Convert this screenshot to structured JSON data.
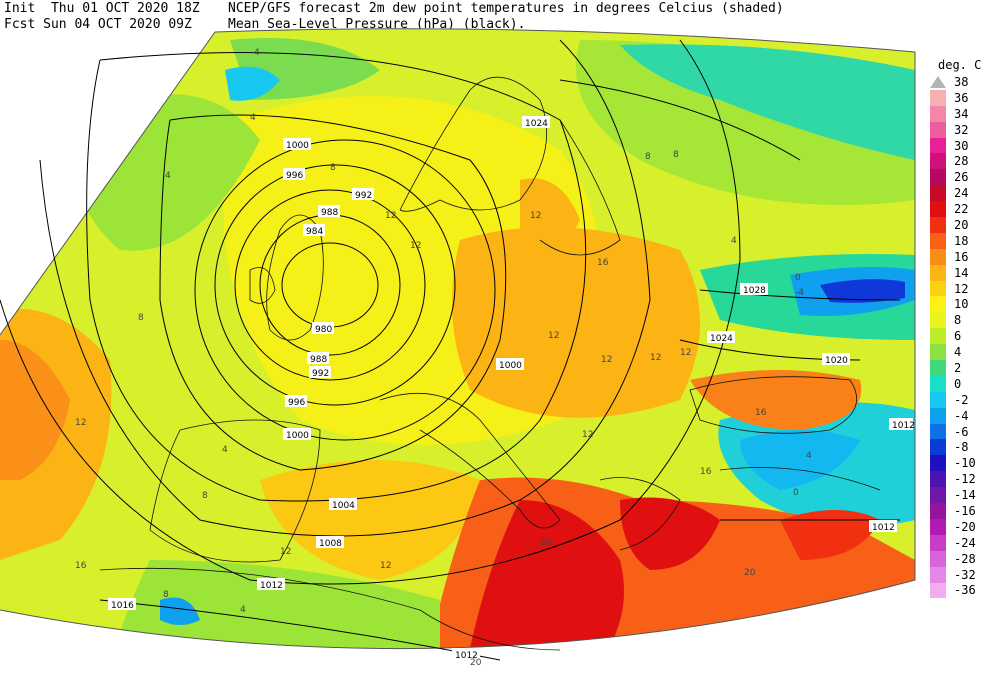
{
  "header": {
    "line1_left": "Init  Thu 01 OCT 2020 18Z",
    "line1_right": "NCEP/GFS forecast 2m dew point temperatures in degrees Celcius (shaded)",
    "line2_left": "Fcst Sun 04 OCT 2020 09Z",
    "line2_right": "Mean Sea-Level Pressure (hPa) (black)."
  },
  "legend": {
    "unit": "deg. C",
    "levels": [
      {
        "label": "38",
        "color": "#b4b4b4"
      },
      {
        "label": "36",
        "color": "#f7b0b0"
      },
      {
        "label": "34",
        "color": "#f486a8"
      },
      {
        "label": "32",
        "color": "#ee5ca0"
      },
      {
        "label": "30",
        "color": "#e8209a"
      },
      {
        "label": "28",
        "color": "#d0107c"
      },
      {
        "label": "26",
        "color": "#b40a60"
      },
      {
        "label": "24",
        "color": "#c80a28"
      },
      {
        "label": "22",
        "color": "#e01010"
      },
      {
        "label": "20",
        "color": "#f03010"
      },
      {
        "label": "18",
        "color": "#f86018"
      },
      {
        "label": "16",
        "color": "#fa8c18"
      },
      {
        "label": "14",
        "color": "#fcb414"
      },
      {
        "label": "12",
        "color": "#fcd010"
      },
      {
        "label": "10",
        "color": "#fcf014"
      },
      {
        "label": "8",
        "color": "#e8f41c"
      },
      {
        "label": "6",
        "color": "#bcec28"
      },
      {
        "label": "4",
        "color": "#8ce040"
      },
      {
        "label": "2",
        "color": "#40d878"
      },
      {
        "label": "0",
        "color": "#18e0c8"
      },
      {
        "label": "-2",
        "color": "#14c8f0"
      },
      {
        "label": "-4",
        "color": "#10a0f0"
      },
      {
        "label": "-6",
        "color": "#1070e8"
      },
      {
        "label": "-8",
        "color": "#0c3cd8"
      },
      {
        "label": "-10",
        "color": "#2010c0"
      },
      {
        "label": "-12",
        "color": "#4c14b0"
      },
      {
        "label": "-14",
        "color": "#7018a8"
      },
      {
        "label": "-16",
        "color": "#94149c"
      },
      {
        "label": "-20",
        "color": "#b01cb0"
      },
      {
        "label": "-24",
        "color": "#c83cc8"
      },
      {
        "label": "-28",
        "color": "#d864dc"
      },
      {
        "label": "-32",
        "color": "#e488e8"
      },
      {
        "label": "-36",
        "color": "#f0aef0"
      }
    ]
  },
  "isobar_labels": [
    "1000",
    "996",
    "992",
    "988",
    "984",
    "980",
    "988",
    "992",
    "996",
    "1000",
    "1004",
    "1008",
    "1012",
    "1016",
    "1000",
    "1024",
    "1028",
    "1024",
    "1020",
    "1012",
    "1012",
    "1012"
  ],
  "dewpoint_labels": [
    "4",
    "4",
    "8",
    "12",
    "12",
    "16",
    "12",
    "12",
    "12",
    "12",
    "12",
    "12",
    "16",
    "16",
    "20",
    "20",
    "20",
    "8",
    "4",
    "0",
    "-4",
    "4",
    "12",
    "8",
    "4",
    "8",
    "12",
    "16",
    "4",
    "0",
    "12",
    "8",
    "4",
    "8"
  ]
}
